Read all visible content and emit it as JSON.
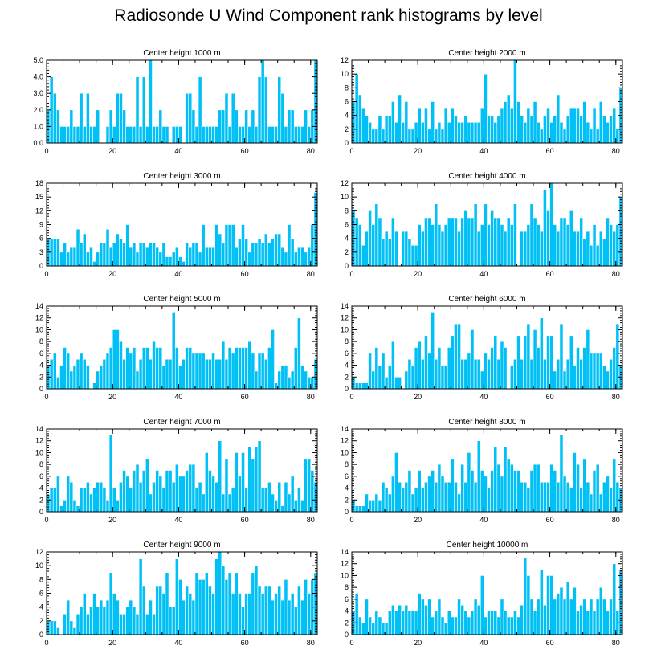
{
  "title": "Radiosonde U Wind Component rank histograms by level",
  "colors": {
    "bar": "#00c0f5",
    "bar_edge": "#ffffff",
    "axis": "#000000"
  },
  "chart_data": [
    {
      "type": "bar",
      "title": "Center height 1000 m",
      "xlim": [
        0,
        82
      ],
      "xticks": [
        0,
        20,
        40,
        60,
        80
      ],
      "ylim": [
        0,
        5
      ],
      "yticks": [
        "0.0",
        "1.0",
        "2.0",
        "3.0",
        "4.0",
        "5.0"
      ],
      "values": [
        2,
        4,
        3,
        2,
        1,
        1,
        1,
        2,
        1,
        1,
        3,
        1,
        3,
        1,
        1,
        2,
        0,
        0,
        1,
        2,
        1,
        3,
        3,
        2,
        1,
        1,
        1,
        4,
        1,
        4,
        1,
        5,
        1,
        1,
        2,
        1,
        1,
        0,
        1,
        1,
        1,
        0,
        3,
        3,
        2,
        1,
        4,
        1,
        1,
        1,
        1,
        1,
        2,
        2,
        3,
        1,
        3,
        2,
        1,
        1,
        2,
        1,
        2,
        1,
        4,
        5,
        4,
        1,
        1,
        1,
        4,
        3,
        1,
        2,
        2,
        1,
        1,
        1,
        2,
        1,
        2,
        5
      ]
    },
    {
      "type": "bar",
      "title": "Center height 2000 m",
      "xlim": [
        0,
        82
      ],
      "xticks": [
        0,
        20,
        40,
        60,
        80
      ],
      "ylim": [
        0,
        12
      ],
      "yticks": [
        "0",
        "2",
        "4",
        "6",
        "8",
        "10",
        "12"
      ],
      "values": [
        6,
        10,
        7,
        5,
        4,
        3,
        2,
        2,
        4,
        2,
        4,
        4,
        6,
        3,
        7,
        3,
        6,
        2,
        2,
        3,
        5,
        3,
        5,
        2,
        6,
        2,
        3,
        2,
        5,
        3,
        5,
        4,
        3,
        3,
        4,
        3,
        3,
        3,
        3,
        5,
        10,
        4,
        4,
        3,
        4,
        5,
        6,
        7,
        5,
        12,
        6,
        4,
        3,
        5,
        4,
        6,
        3,
        2,
        4,
        5,
        3,
        4,
        7,
        3,
        2,
        4,
        5,
        5,
        5,
        4,
        6,
        3,
        2,
        5,
        2,
        6,
        4,
        3,
        4,
        5,
        2,
        8
      ]
    },
    {
      "type": "bar",
      "title": "Center height 3000 m",
      "xlim": [
        0,
        82
      ],
      "xticks": [
        0,
        20,
        40,
        60,
        80
      ],
      "ylim": [
        0,
        18
      ],
      "yticks": [
        "0",
        "3",
        "6",
        "9",
        "12",
        "15",
        "18"
      ],
      "values": [
        6,
        6,
        6,
        6,
        3,
        5,
        3,
        4,
        4,
        8,
        5,
        7,
        3,
        4,
        1,
        3,
        5,
        5,
        8,
        4,
        5,
        7,
        6,
        5,
        9,
        4,
        5,
        3,
        5,
        5,
        4,
        5,
        5,
        4,
        3,
        5,
        2,
        2,
        3,
        4,
        2,
        1,
        5,
        4,
        5,
        5,
        3,
        9,
        4,
        4,
        4,
        9,
        7,
        5,
        9,
        9,
        9,
        4,
        6,
        9,
        6,
        3,
        5,
        5,
        6,
        5,
        7,
        5,
        6,
        7,
        7,
        4,
        3,
        9,
        6,
        3,
        4,
        4,
        3,
        4,
        9,
        16
      ]
    },
    {
      "type": "bar",
      "title": "Center height 4000 m",
      "xlim": [
        0,
        82
      ],
      "xticks": [
        0,
        20,
        40,
        60,
        80
      ],
      "ylim": [
        0,
        12
      ],
      "yticks": [
        "0",
        "2",
        "4",
        "6",
        "8",
        "10",
        "12"
      ],
      "values": [
        8,
        7,
        6,
        3,
        5,
        8,
        6,
        9,
        7,
        4,
        5,
        4,
        7,
        5,
        0,
        5,
        5,
        4,
        3,
        3,
        6,
        5,
        7,
        7,
        6,
        9,
        6,
        5,
        6,
        7,
        7,
        7,
        5,
        7,
        8,
        7,
        7,
        9,
        5,
        6,
        9,
        6,
        8,
        7,
        7,
        6,
        5,
        7,
        6,
        9,
        0,
        5,
        5,
        6,
        9,
        7,
        6,
        5,
        11,
        8,
        12,
        6,
        5,
        7,
        7,
        6,
        8,
        5,
        5,
        7,
        4,
        5,
        3,
        6,
        3,
        5,
        4,
        7,
        6,
        5,
        6,
        10
      ]
    },
    {
      "type": "bar",
      "title": "Center height 5000 m",
      "xlim": [
        0,
        82
      ],
      "xticks": [
        0,
        20,
        40,
        60,
        80
      ],
      "ylim": [
        0,
        14
      ],
      "yticks": [
        "0",
        "2",
        "4",
        "6",
        "8",
        "10",
        "12",
        "14"
      ],
      "values": [
        4,
        5,
        6,
        2,
        4,
        7,
        6,
        3,
        4,
        5,
        6,
        5,
        4,
        0,
        1,
        3,
        4,
        5,
        6,
        7,
        10,
        10,
        8,
        5,
        7,
        6,
        7,
        3,
        5,
        7,
        7,
        5,
        8,
        7,
        7,
        4,
        5,
        5,
        13,
        7,
        4,
        5,
        7,
        7,
        6,
        6,
        6,
        6,
        5,
        5,
        6,
        5,
        5,
        8,
        5,
        7,
        6,
        7,
        7,
        7,
        7,
        8,
        6,
        3,
        6,
        6,
        5,
        7,
        10,
        1,
        3,
        4,
        4,
        2,
        3,
        7,
        12,
        4,
        3,
        2,
        2,
        5
      ]
    },
    {
      "type": "bar",
      "title": "Center height 6000 m",
      "xlim": [
        0,
        82
      ],
      "xticks": [
        0,
        20,
        40,
        60,
        80
      ],
      "ylim": [
        0,
        14
      ],
      "yticks": [
        "0",
        "2",
        "4",
        "6",
        "8",
        "10",
        "12",
        "14"
      ],
      "values": [
        2,
        1,
        1,
        1,
        1,
        6,
        3,
        7,
        4,
        6,
        2,
        4,
        8,
        2,
        2,
        0,
        3,
        5,
        4,
        7,
        8,
        5,
        9,
        6,
        13,
        5,
        7,
        4,
        4,
        7,
        9,
        11,
        11,
        5,
        5,
        6,
        10,
        5,
        5,
        3,
        6,
        5,
        7,
        9,
        5,
        8,
        7,
        0,
        4,
        5,
        9,
        5,
        9,
        11,
        5,
        10,
        7,
        12,
        5,
        9,
        9,
        3,
        5,
        11,
        3,
        5,
        9,
        4,
        7,
        5,
        7,
        10,
        6,
        6,
        6,
        6,
        4,
        3,
        5,
        7,
        11,
        4
      ]
    },
    {
      "type": "bar",
      "title": "Center height 7000 m",
      "xlim": [
        0,
        82
      ],
      "xticks": [
        0,
        20,
        40,
        60,
        80
      ],
      "ylim": [
        0,
        14
      ],
      "yticks": [
        "0",
        "2",
        "4",
        "6",
        "8",
        "10",
        "12",
        "14"
      ],
      "values": [
        3,
        4,
        4,
        6,
        1,
        2,
        6,
        5,
        2,
        1,
        4,
        4,
        5,
        3,
        4,
        5,
        5,
        4,
        2,
        13,
        4,
        2,
        5,
        7,
        6,
        4,
        7,
        8,
        5,
        7,
        9,
        3,
        5,
        7,
        6,
        4,
        7,
        7,
        5,
        8,
        6,
        6,
        7,
        8,
        8,
        4,
        5,
        3,
        10,
        7,
        6,
        5,
        12,
        3,
        9,
        3,
        4,
        10,
        6,
        10,
        4,
        11,
        9,
        11,
        12,
        4,
        4,
        5,
        3,
        2,
        5,
        1,
        5,
        3,
        6,
        2,
        4,
        2,
        9,
        9,
        7,
        5
      ]
    },
    {
      "type": "bar",
      "title": "Center height 8000 m",
      "xlim": [
        0,
        82
      ],
      "xticks": [
        0,
        20,
        40,
        60,
        80
      ],
      "ylim": [
        0,
        14
      ],
      "yticks": [
        "0",
        "2",
        "4",
        "6",
        "8",
        "10",
        "12",
        "14"
      ],
      "values": [
        2,
        1,
        1,
        1,
        3,
        2,
        2,
        3,
        2,
        5,
        4,
        3,
        6,
        10,
        5,
        4,
        5,
        7,
        3,
        4,
        7,
        4,
        5,
        6,
        7,
        5,
        8,
        6,
        5,
        5,
        9,
        5,
        3,
        8,
        5,
        10,
        7,
        5,
        12,
        7,
        6,
        4,
        7,
        11,
        8,
        6,
        11,
        9,
        8,
        7,
        7,
        5,
        5,
        4,
        7,
        8,
        8,
        5,
        5,
        5,
        8,
        7,
        5,
        13,
        6,
        5,
        4,
        10,
        8,
        4,
        9,
        5,
        3,
        7,
        8,
        3,
        5,
        6,
        4,
        9,
        5,
        4
      ]
    },
    {
      "type": "bar",
      "title": "Center height 9000 m",
      "xlim": [
        0,
        82
      ],
      "xticks": [
        0,
        20,
        40,
        60,
        80
      ],
      "ylim": [
        0,
        12
      ],
      "yticks": [
        "0",
        "2",
        "4",
        "6",
        "8",
        "10",
        "12"
      ],
      "values": [
        2,
        2,
        2,
        1,
        0,
        3,
        5,
        2,
        1,
        3,
        4,
        6,
        3,
        4,
        6,
        4,
        5,
        4,
        5,
        9,
        6,
        5,
        3,
        3,
        4,
        5,
        4,
        3,
        11,
        7,
        3,
        5,
        3,
        7,
        7,
        6,
        9,
        4,
        4,
        11,
        8,
        5,
        7,
        6,
        5,
        9,
        8,
        8,
        9,
        7,
        6,
        11,
        12,
        10,
        8,
        9,
        6,
        9,
        6,
        4,
        6,
        6,
        9,
        10,
        7,
        6,
        7,
        7,
        5,
        6,
        7,
        5,
        8,
        5,
        6,
        4,
        7,
        5,
        8,
        6,
        8,
        9
      ]
    },
    {
      "type": "bar",
      "title": "Center height 10000 m",
      "xlim": [
        0,
        82
      ],
      "xticks": [
        0,
        20,
        40,
        60,
        80
      ],
      "ylim": [
        0,
        14
      ],
      "yticks": [
        "0",
        "2",
        "4",
        "6",
        "8",
        "10",
        "12",
        "14"
      ],
      "values": [
        4,
        7,
        3,
        2,
        6,
        3,
        2,
        4,
        3,
        2,
        2,
        4,
        5,
        4,
        5,
        4,
        5,
        4,
        4,
        4,
        7,
        6,
        5,
        6,
        3,
        4,
        6,
        3,
        2,
        4,
        3,
        3,
        6,
        5,
        4,
        3,
        4,
        6,
        5,
        10,
        3,
        4,
        4,
        4,
        3,
        6,
        4,
        3,
        3,
        4,
        3,
        5,
        13,
        10,
        6,
        4,
        6,
        11,
        5,
        10,
        10,
        6,
        7,
        8,
        6,
        9,
        6,
        8,
        4,
        5,
        6,
        4,
        6,
        4,
        6,
        8,
        6,
        4,
        6,
        12,
        4,
        11
      ]
    }
  ]
}
